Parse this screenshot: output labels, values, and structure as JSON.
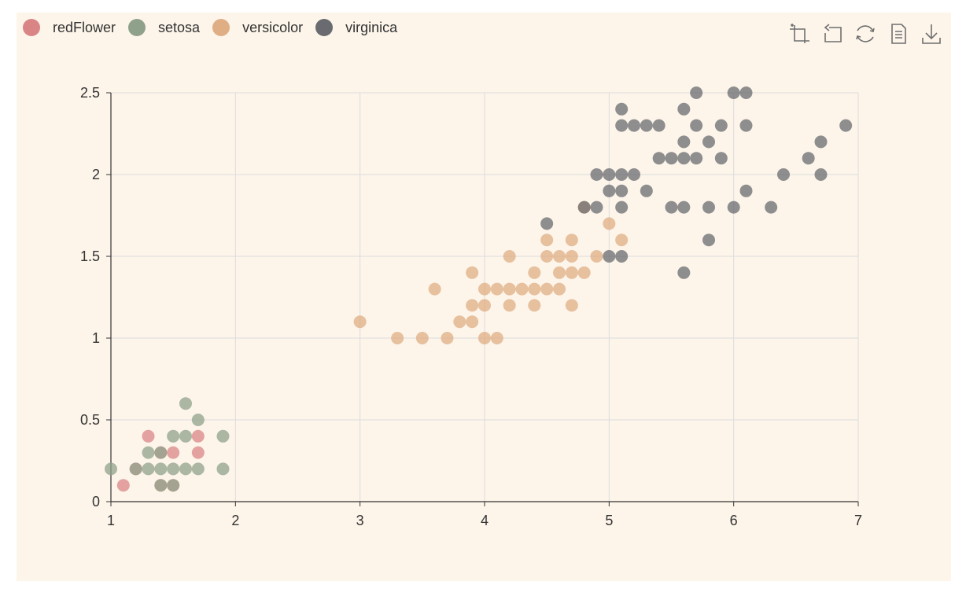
{
  "legend": [
    {
      "name": "redFlower",
      "color": "#d98585"
    },
    {
      "name": "setosa",
      "color": "#8fa18b"
    },
    {
      "name": "versicolor",
      "color": "#dfae84"
    },
    {
      "name": "virginica",
      "color": "#6a6b70"
    }
  ],
  "toolbox": {
    "icons": [
      "zoom-icon",
      "zoom-reset-icon",
      "restore-icon",
      "data-view-icon",
      "save-image-icon"
    ],
    "icon_color": "#6f6f6f"
  },
  "chart_data": {
    "type": "scatter",
    "title": "",
    "xlabel": "",
    "ylabel": "",
    "xlim": [
      1,
      7
    ],
    "ylim": [
      0,
      2.5
    ],
    "x_ticks": [
      "1",
      "2",
      "3",
      "4",
      "5",
      "6",
      "7"
    ],
    "y_ticks": [
      "0",
      "0.5",
      "1",
      "1.5",
      "2",
      "2.5"
    ],
    "grid": true,
    "legend_position": "top-left",
    "series": [
      {
        "name": "redFlower",
        "color": "#d98585",
        "points": [
          [
            1.1,
            0.1
          ],
          [
            1.2,
            0.2
          ],
          [
            1.3,
            0.4
          ],
          [
            1.4,
            0.3
          ],
          [
            1.5,
            0.3
          ],
          [
            1.7,
            0.4
          ],
          [
            1.7,
            0.3
          ],
          [
            1.4,
            0.1
          ],
          [
            1.5,
            0.1
          ]
        ]
      },
      {
        "name": "setosa",
        "color": "#8fa18b",
        "points": [
          [
            1.0,
            0.2
          ],
          [
            1.2,
            0.2
          ],
          [
            1.3,
            0.2
          ],
          [
            1.3,
            0.3
          ],
          [
            1.4,
            0.2
          ],
          [
            1.4,
            0.3
          ],
          [
            1.4,
            0.1
          ],
          [
            1.5,
            0.2
          ],
          [
            1.5,
            0.4
          ],
          [
            1.5,
            0.1
          ],
          [
            1.6,
            0.2
          ],
          [
            1.6,
            0.4
          ],
          [
            1.6,
            0.6
          ],
          [
            1.7,
            0.2
          ],
          [
            1.7,
            0.5
          ],
          [
            1.9,
            0.2
          ],
          [
            1.9,
            0.4
          ]
        ]
      },
      {
        "name": "versicolor",
        "color": "#dfae84",
        "points": [
          [
            3.0,
            1.1
          ],
          [
            3.3,
            1.0
          ],
          [
            3.5,
            1.0
          ],
          [
            3.6,
            1.3
          ],
          [
            3.7,
            1.0
          ],
          [
            3.8,
            1.1
          ],
          [
            3.9,
            1.1
          ],
          [
            3.9,
            1.2
          ],
          [
            3.9,
            1.4
          ],
          [
            4.0,
            1.0
          ],
          [
            4.0,
            1.2
          ],
          [
            4.0,
            1.3
          ],
          [
            4.1,
            1.0
          ],
          [
            4.1,
            1.3
          ],
          [
            4.2,
            1.2
          ],
          [
            4.2,
            1.3
          ],
          [
            4.2,
            1.5
          ],
          [
            4.3,
            1.3
          ],
          [
            4.4,
            1.2
          ],
          [
            4.4,
            1.3
          ],
          [
            4.4,
            1.4
          ],
          [
            4.5,
            1.3
          ],
          [
            4.5,
            1.5
          ],
          [
            4.5,
            1.6
          ],
          [
            4.6,
            1.3
          ],
          [
            4.6,
            1.4
          ],
          [
            4.6,
            1.5
          ],
          [
            4.7,
            1.2
          ],
          [
            4.7,
            1.4
          ],
          [
            4.7,
            1.5
          ],
          [
            4.7,
            1.6
          ],
          [
            4.8,
            1.4
          ],
          [
            4.8,
            1.8
          ],
          [
            4.9,
            1.5
          ],
          [
            5.0,
            1.7
          ],
          [
            5.1,
            1.6
          ]
        ]
      },
      {
        "name": "virginica",
        "color": "#6a6b70",
        "points": [
          [
            4.5,
            1.7
          ],
          [
            4.8,
            1.8
          ],
          [
            4.9,
            1.8
          ],
          [
            4.9,
            2.0
          ],
          [
            5.0,
            1.5
          ],
          [
            5.0,
            1.9
          ],
          [
            5.0,
            2.0
          ],
          [
            5.1,
            1.5
          ],
          [
            5.1,
            1.8
          ],
          [
            5.1,
            1.9
          ],
          [
            5.1,
            2.0
          ],
          [
            5.1,
            2.3
          ],
          [
            5.1,
            2.4
          ],
          [
            5.2,
            2.0
          ],
          [
            5.2,
            2.3
          ],
          [
            5.3,
            1.9
          ],
          [
            5.3,
            2.3
          ],
          [
            5.4,
            2.1
          ],
          [
            5.4,
            2.3
          ],
          [
            5.5,
            1.8
          ],
          [
            5.5,
            2.1
          ],
          [
            5.6,
            1.4
          ],
          [
            5.6,
            1.8
          ],
          [
            5.6,
            2.1
          ],
          [
            5.6,
            2.2
          ],
          [
            5.6,
            2.4
          ],
          [
            5.7,
            2.1
          ],
          [
            5.7,
            2.3
          ],
          [
            5.7,
            2.5
          ],
          [
            5.8,
            1.6
          ],
          [
            5.8,
            1.8
          ],
          [
            5.8,
            2.2
          ],
          [
            5.9,
            2.1
          ],
          [
            5.9,
            2.3
          ],
          [
            6.0,
            1.8
          ],
          [
            6.0,
            2.5
          ],
          [
            6.1,
            1.9
          ],
          [
            6.1,
            2.3
          ],
          [
            6.1,
            2.5
          ],
          [
            6.3,
            1.8
          ],
          [
            6.4,
            2.0
          ],
          [
            6.6,
            2.1
          ],
          [
            6.7,
            2.0
          ],
          [
            6.7,
            2.2
          ],
          [
            6.9,
            2.3
          ]
        ]
      }
    ]
  }
}
